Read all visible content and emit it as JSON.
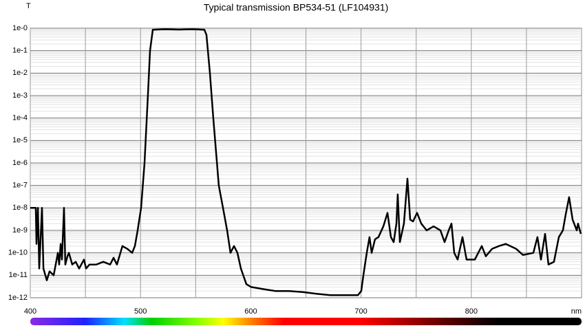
{
  "chart_data": {
    "type": "line",
    "title": "Typical transmission BP534-51 (LF104931)",
    "y_label": "T",
    "x_label": "nm",
    "xlim": [
      400,
      900
    ],
    "xticks": [
      400,
      500,
      600,
      700,
      800
    ],
    "x_minor_ticks": [
      450,
      550,
      650,
      750,
      850
    ],
    "ylim": [
      1e-12,
      1
    ],
    "log_y": true,
    "grid": true,
    "yticks": [
      {
        "value": 1,
        "label": "1e-0"
      },
      {
        "value": 0.1,
        "label": "1e-1"
      },
      {
        "value": 0.01,
        "label": "1e-2"
      },
      {
        "value": 0.001,
        "label": "1e-3"
      },
      {
        "value": 0.0001,
        "label": "1e-4"
      },
      {
        "value": 1e-05,
        "label": "1e-5"
      },
      {
        "value": 1e-06,
        "label": "1e-6"
      },
      {
        "value": 1e-07,
        "label": "1e-7"
      },
      {
        "value": 1e-08,
        "label": "1e-8"
      },
      {
        "value": 1e-09,
        "label": "1e-9"
      },
      {
        "value": 1e-10,
        "label": "1e-10"
      },
      {
        "value": 1e-11,
        "label": "1e-11"
      },
      {
        "value": 1e-12,
        "label": "1e-12"
      }
    ],
    "color": "#000000",
    "x": [
      400,
      405,
      405.6,
      406.9,
      408.1,
      410.6,
      411.9,
      413.7,
      415,
      417.5,
      421.2,
      425,
      426.2,
      427.5,
      428.7,
      430.6,
      431.8,
      433.7,
      435,
      438.1,
      441.2,
      444.3,
      448.7,
      450.6,
      453.7,
      459.9,
      466.2,
      472.4,
      475.5,
      478.6,
      483.6,
      488,
      492.4,
      494.9,
      497.4,
      500.5,
      503.6,
      506.7,
      508.6,
      511.1,
      522.3,
      534.8,
      547.3,
      557.9,
      559.8,
      562.9,
      566,
      571,
      574.8,
      578.5,
      581.6,
      584.8,
      587.9,
      591,
      596,
      600.4,
      609.7,
      622.2,
      634.7,
      647.2,
      659.7,
      672.2,
      684.6,
      697.1,
      700.2,
      702.1,
      705.2,
      707.7,
      709.6,
      712.7,
      715.8,
      720.2,
      724,
      727.1,
      729.6,
      732.1,
      733.3,
      735.2,
      738.9,
      742.1,
      744.6,
      747.1,
      750.8,
      754.6,
      759.5,
      765.8,
      772,
      775.8,
      779.5,
      782,
      784.5,
      787.6,
      792,
      795.7,
      803.2,
      809.5,
      813.2,
      818.8,
      825.1,
      831.3,
      840.7,
      846.9,
      856.3,
      860,
      863.2,
      866.9,
      870,
      875,
      879.4,
      883.1,
      885.6,
      888.7,
      891.9,
      895.6,
      896.8,
      899.3
    ],
    "y": [
      1e-08,
      1e-08,
      2.5e-10,
      1e-08,
      2e-11,
      1e-08,
      2e-11,
      1e-11,
      6e-12,
      1.5e-11,
      1e-11,
      1e-10,
      3e-11,
      2.5e-10,
      5e-11,
      1e-08,
      3e-11,
      7e-11,
      1e-10,
      3e-11,
      4e-11,
      2e-11,
      5e-11,
      2e-11,
      3e-11,
      3e-11,
      4e-11,
      3e-11,
      6e-11,
      3e-11,
      2e-10,
      1.5e-10,
      1e-10,
      2e-10,
      1e-09,
      1e-08,
      1e-06,
      0.001,
      0.1,
      0.85,
      0.9,
      0.87,
      0.9,
      0.85,
      0.5,
      0.01,
      0.0001,
      1e-07,
      1e-08,
      1e-09,
      1e-10,
      2e-10,
      1e-10,
      2e-11,
      4e-12,
      3e-12,
      2.5e-12,
      2e-12,
      2e-12,
      1.8e-12,
      1.5e-12,
      1.3e-12,
      1.3e-12,
      1.3e-12,
      2e-12,
      1e-11,
      1e-10,
      5e-10,
      1e-10,
      4e-10,
      5e-10,
      1.5e-09,
      6e-09,
      5e-10,
      3e-10,
      2e-09,
      4e-08,
      3e-10,
      2e-09,
      2e-07,
      3e-09,
      2.5e-09,
      6e-09,
      2e-09,
      1e-09,
      1.5e-09,
      1e-09,
      3e-10,
      1e-09,
      2e-09,
      1e-10,
      5e-11,
      5e-10,
      5e-11,
      5e-11,
      2e-10,
      7e-11,
      1.5e-10,
      2e-10,
      2.5e-10,
      1.5e-10,
      8e-11,
      1e-10,
      5e-10,
      5e-11,
      7e-10,
      3e-11,
      4e-11,
      5e-10,
      1e-09,
      5e-09,
      3e-08,
      3e-09,
      1e-09,
      2e-09,
      7e-10
    ]
  }
}
